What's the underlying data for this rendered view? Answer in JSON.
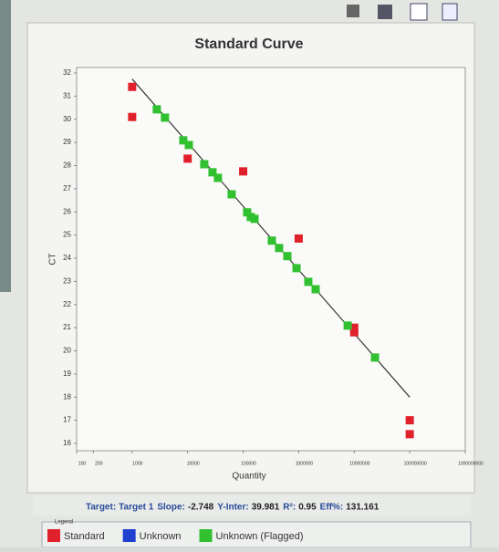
{
  "chart_data": {
    "type": "scatter",
    "title": "Standard Curve",
    "x_label": "Quantity",
    "y_label": "CT",
    "log_x": true,
    "xlim": [
      100,
      1000000000
    ],
    "xticks": [
      100,
      200,
      1000,
      10000,
      100000,
      1000000,
      10000000,
      100000000,
      1000000000
    ],
    "ylim": [
      16,
      32
    ],
    "yticks": [
      16,
      17,
      18,
      19,
      20,
      21,
      22,
      23,
      24,
      25,
      26,
      27,
      28,
      29,
      30,
      31,
      32
    ],
    "fit": {
      "slope": -2.748,
      "intercept": 39.981,
      "color": "#333333"
    },
    "series": [
      {
        "name": "Standard",
        "color": "#e0202a",
        "x": [
          1000,
          1000,
          10000,
          100000,
          1000000,
          10000000,
          10000000,
          100000000,
          100000000
        ],
        "values": [
          31.4,
          30.1,
          28.3,
          27.75,
          24.85,
          21.0,
          20.8,
          17.0,
          16.4
        ]
      },
      {
        "name": "Unknown",
        "color": "#2040d0",
        "x": [],
        "values": []
      },
      {
        "name": "Unknown (Flagged)",
        "color": "#30c030",
        "x": [
          2780,
          3900,
          8340,
          10500,
          19900,
          28000,
          35100,
          62000,
          118000,
          137000,
          160000,
          328000,
          444000,
          625000,
          914000,
          1490000,
          2020000,
          7620000,
          23700000
        ],
        "values": [
          30.43,
          30.07,
          29.09,
          28.89,
          28.06,
          27.71,
          27.47,
          26.76,
          25.98,
          25.78,
          25.7,
          24.76,
          24.44,
          24.09,
          23.57,
          22.98,
          22.66,
          21.09,
          19.71
        ]
      }
    ]
  },
  "status": [
    {
      "label": "Target:",
      "value": "Target 1"
    },
    {
      "label": "Slope:",
      "value": "-2.748"
    },
    {
      "label": "Y-Inter:",
      "value": "39.981"
    },
    {
      "label": "R²:",
      "value": "0.95"
    },
    {
      "label": "Eff%:",
      "value": "131.161"
    }
  ],
  "legend_title": "Legend"
}
